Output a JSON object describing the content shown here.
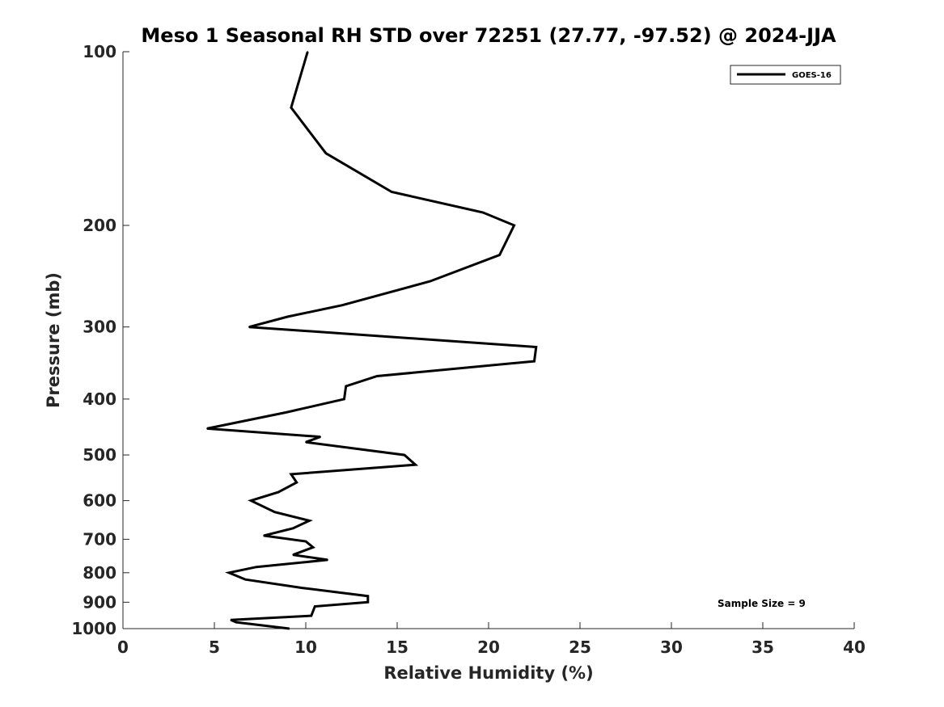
{
  "chart_data": {
    "type": "line",
    "title": "Meso 1 Seasonal RH STD over 72251 (27.77, -97.52) @ 2024-JJA",
    "xlabel": "Relative Humidity (%)",
    "ylabel": "Pressure (mb)",
    "xlim": [
      0,
      40
    ],
    "ylim": [
      1000,
      100
    ],
    "yscale": "log",
    "xticks": [
      0,
      5,
      10,
      15,
      20,
      25,
      30,
      35,
      40
    ],
    "xtick_labels": [
      "0",
      "5",
      "10",
      "15",
      "20",
      "25",
      "30",
      "35",
      "40"
    ],
    "yticks": [
      100,
      200,
      300,
      400,
      500,
      600,
      700,
      800,
      900,
      1000
    ],
    "ytick_labels": [
      "100",
      "200",
      "300",
      "400",
      "500",
      "600",
      "700",
      "800",
      "900",
      "1000"
    ],
    "grid": false,
    "legend_position": "top-right",
    "annotation": "Sample Size = 9",
    "series": [
      {
        "name": "GOES-16",
        "color": "#000000",
        "x": [
          10.1,
          9.2,
          11.1,
          14.7,
          19.7,
          21.4,
          20.6,
          16.8,
          12.0,
          9.0,
          6.9,
          22.6,
          22.5,
          13.9,
          12.2,
          12.1,
          8.9,
          4.6,
          10.8,
          10.0,
          15.4,
          16.0,
          9.2,
          9.5,
          8.5,
          7.0,
          8.3,
          10.2,
          9.3,
          7.7,
          10.0,
          10.4,
          9.3,
          11.2,
          7.3,
          5.8,
          6.7,
          9.8,
          13.4,
          13.4,
          10.5,
          10.3,
          5.9,
          6.2,
          9.1
        ],
        "y": [
          100,
          125,
          150,
          175,
          190,
          200,
          225,
          250,
          275,
          288,
          300,
          325,
          344,
          365,
          380,
          400,
          422,
          450,
          465,
          475,
          500,
          520,
          540,
          558,
          580,
          600,
          628,
          650,
          670,
          690,
          706,
          723,
          745,
          760,
          782,
          800,
          822,
          850,
          878,
          900,
          915,
          950,
          966,
          975,
          1000
        ]
      }
    ]
  }
}
